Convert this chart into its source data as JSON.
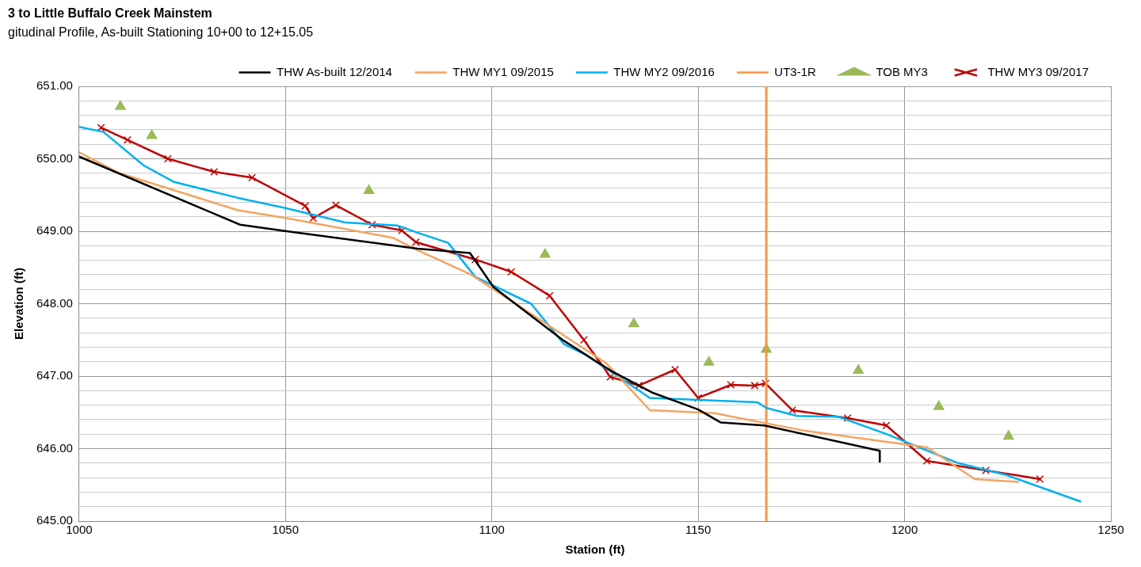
{
  "chart_data": {
    "type": "line",
    "title": "3 to Little Buffalo  Creek Mainstem",
    "subtitle": "gitudinal Profile, As-built Stationing 10+00 to 12+15.05",
    "xlabel": "Station (ft)",
    "ylabel": "Elevation (ft)",
    "xlim": [
      1000,
      1250
    ],
    "xticks": [
      1000,
      1050,
      1100,
      1150,
      1200,
      1250
    ],
    "ylim": [
      645,
      651
    ],
    "yticks": [
      {
        "value": 645,
        "label": "645.00"
      },
      {
        "value": 645.2,
        "label": null
      },
      {
        "value": 645.4,
        "label": null
      },
      {
        "value": 645.6,
        "label": null
      },
      {
        "value": 645.8,
        "label": null
      },
      {
        "value": 646,
        "label": "646.00"
      },
      {
        "value": 646.2,
        "label": null
      },
      {
        "value": 646.4,
        "label": null
      },
      {
        "value": 646.6,
        "label": null
      },
      {
        "value": 646.8,
        "label": null
      },
      {
        "value": 647,
        "label": "647.00"
      },
      {
        "value": 647.2,
        "label": null
      },
      {
        "value": 647.4,
        "label": null
      },
      {
        "value": 647.6,
        "label": null
      },
      {
        "value": 647.8,
        "label": null
      },
      {
        "value": 648,
        "label": "648.00"
      },
      {
        "value": 648.2,
        "label": null
      },
      {
        "value": 648.4,
        "label": null
      },
      {
        "value": 648.6,
        "label": null
      },
      {
        "value": 648.8,
        "label": null
      },
      {
        "value": 649,
        "label": "649.00"
      },
      {
        "value": 649.2,
        "label": null
      },
      {
        "value": 649.4,
        "label": null
      },
      {
        "value": 649.6,
        "label": null
      },
      {
        "value": 649.8,
        "label": null
      },
      {
        "value": 650,
        "label": "650.00"
      },
      {
        "value": 650.2,
        "label": null
      },
      {
        "value": 650.4,
        "label": null
      },
      {
        "value": 650.6,
        "label": null
      },
      {
        "value": 650.8,
        "label": null
      },
      {
        "value": 651,
        "label": "651.00"
      }
    ],
    "grid": true,
    "legend": "top right",
    "series": [
      {
        "name": "THW As-built 12/2014",
        "type": "line",
        "marker": "none",
        "color": "#000000",
        "x": [
          1000,
          1039,
          1050.3,
          1082,
          1094.7,
          1100.4,
          1108,
          1117.4,
          1129,
          1139,
          1150,
          1155.5,
          1166,
          1194,
          1194
        ],
        "values": [
          650.03,
          649.09,
          649.0,
          648.76,
          648.7,
          648.23,
          647.9,
          647.49,
          647.07,
          646.77,
          646.54,
          646.36,
          646.32,
          645.97,
          645.82
        ]
      },
      {
        "name": "THW MY1 09/2015",
        "type": "line",
        "marker": "none",
        "color": "#f4a460",
        "x": [
          1000,
          1009.8,
          1038.5,
          1050.3,
          1076,
          1082,
          1095,
          1127.7,
          1138.3,
          1154,
          1160,
          1175.5,
          1200,
          1205.4,
          1217,
          1227.5
        ],
        "values": [
          650.09,
          649.8,
          649.29,
          649.18,
          648.91,
          648.74,
          648.4,
          647.18,
          646.53,
          646.49,
          646.42,
          646.25,
          646.06,
          646.02,
          645.58,
          645.54
        ]
      },
      {
        "name": "THW MY2 09/2016",
        "type": "line",
        "marker": "none",
        "color": "#00b0f0",
        "x": [
          1000,
          1005.9,
          1015.6,
          1023,
          1038.5,
          1050,
          1064.5,
          1077,
          1082,
          1089.4,
          1096,
          1109.5,
          1117.5,
          1122.6,
          1138.3,
          1164.3,
          1166.6,
          1174,
          1184,
          1195.6,
          1213,
          1224.4,
          1242.6
        ],
        "values": [
          650.44,
          650.37,
          649.91,
          649.68,
          649.46,
          649.32,
          649.12,
          649.08,
          648.98,
          648.84,
          648.37,
          648.0,
          647.44,
          647.3,
          646.7,
          646.64,
          646.56,
          646.45,
          646.44,
          646.2,
          645.8,
          645.64,
          645.27
        ]
      },
      {
        "name": "UT3-1R",
        "type": "line",
        "marker": "none",
        "color": "#f79646",
        "x": [
          1166.5,
          1166.5
        ],
        "values": [
          645,
          651
        ]
      },
      {
        "name": "TOB MY3",
        "type": "scatter",
        "marker": "triangle",
        "color": "#9bbb59",
        "x": [
          1010,
          1017.6,
          1070.2,
          1112.9,
          1134.4,
          1152.6,
          1166.5,
          1188.8,
          1208.3,
          1225.2
        ],
        "values": [
          650.72,
          650.32,
          649.56,
          648.68,
          647.72,
          647.19,
          647.37,
          647.08,
          646.58,
          646.17
        ]
      },
      {
        "name": "THW MY3 09/2017",
        "type": "line",
        "marker": "cross",
        "color": "#c00000",
        "x": [
          1005.3,
          1011.7,
          1021.5,
          1032.7,
          1041.9,
          1054.8,
          1056.7,
          1062.2,
          1071,
          1078.2,
          1081.6,
          1096,
          1104.7,
          1114,
          1122.3,
          1128.7,
          1135.6,
          1144.4,
          1150,
          1157.9,
          1163.7,
          1166.3,
          1172.8,
          1186.2,
          1195.6,
          1205.4,
          1219.7,
          1232.8
        ],
        "values": [
          650.43,
          650.26,
          650.0,
          649.82,
          649.74,
          649.35,
          649.18,
          649.36,
          649.09,
          649.01,
          648.85,
          648.61,
          648.44,
          648.11,
          647.5,
          646.99,
          646.87,
          647.09,
          646.7,
          646.88,
          646.87,
          646.9,
          646.53,
          646.42,
          646.32,
          645.83,
          645.7,
          645.58
        ]
      }
    ]
  }
}
